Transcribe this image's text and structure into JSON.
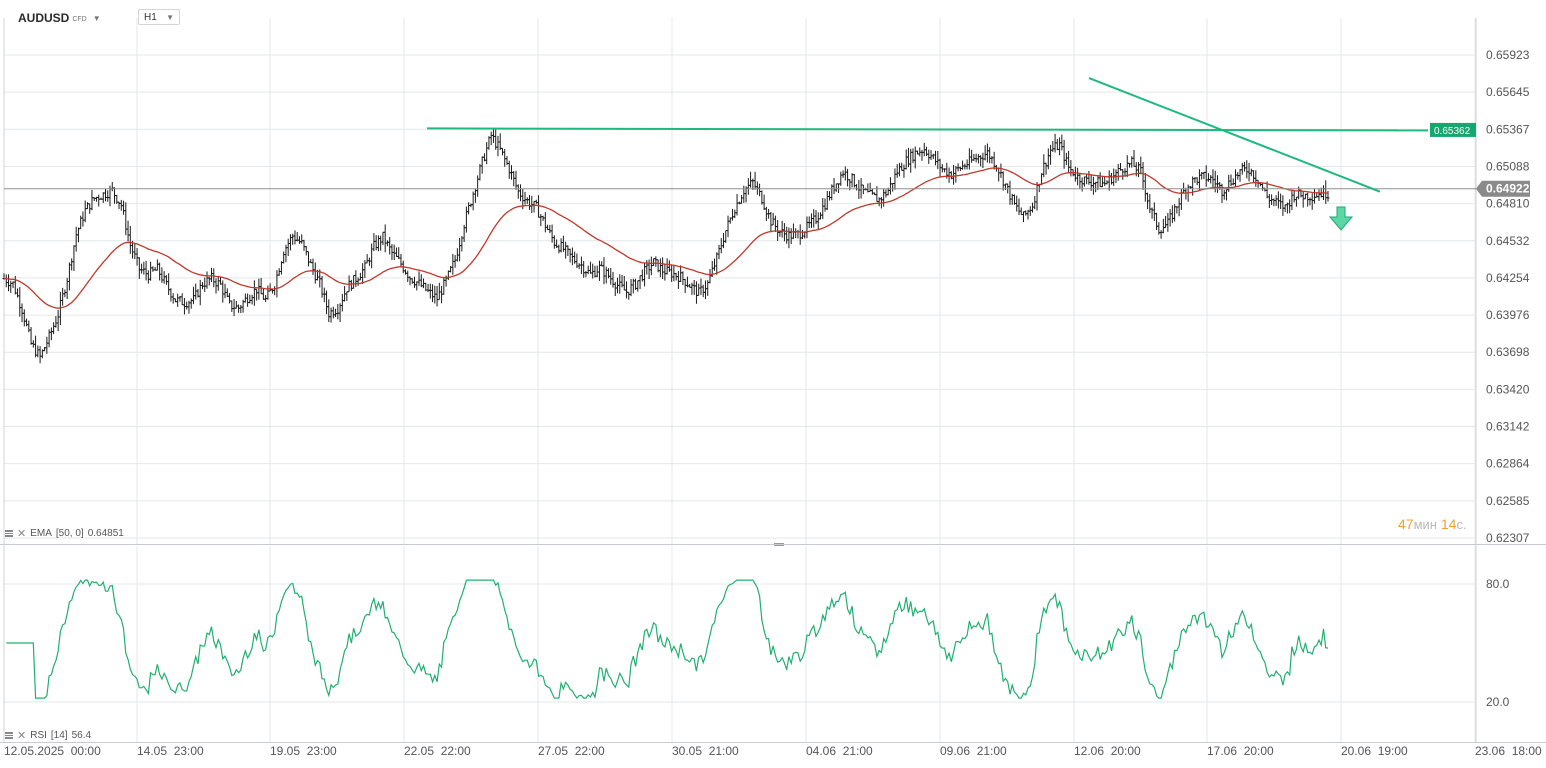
{
  "toolbar": {
    "symbol": "AUDUSD",
    "symbol_type": "CFD",
    "timeframe": "H1"
  },
  "indicators": {
    "ema": {
      "name": "EMA",
      "params": "[50, 0]",
      "value": "0.64851"
    },
    "rsi": {
      "name": "RSI",
      "params": "[14]",
      "value": "56.4"
    }
  },
  "timer": {
    "minutes": "47",
    "minutes_unit": "мин",
    "seconds": "14",
    "seconds_unit": "с."
  },
  "colors": {
    "candle": "#1a1a1a",
    "ema": "#c0392b",
    "trendline": "#1fb87e",
    "rsi": "#20b070",
    "grid": "#e4e7ea",
    "axis_text": "#555555",
    "accent_badge": "#14a870",
    "price_badge": "#8a8a8a"
  },
  "chart_data": [
    {
      "type": "candlestick",
      "title": "AUDUSD",
      "y_ticks": [
        "0.65923",
        "0.65645",
        "0.65367",
        "0.65088",
        "0.64810",
        "0.64532",
        "0.64254",
        "0.63976",
        "0.63698",
        "0.63420",
        "0.63142",
        "0.62864",
        "0.62585",
        "0.62307"
      ],
      "ylim": [
        0.62307,
        0.65923
      ],
      "x_ticks": [
        "12.05.2025  00:00",
        "14.05  23:00",
        "19.05  23:00",
        "22.05  22:00",
        "27.05  22:00",
        "30.05  21:00",
        "04.06  21:00",
        "09.06  21:00",
        "12.06  20:00",
        "17.06  20:00",
        "20.06  19:00",
        "23.06  18:00"
      ],
      "current_price": "0.64922",
      "level_label": "0.65362",
      "close_series": [
        0.6425,
        0.6421,
        0.6402,
        0.6376,
        0.6366,
        0.6381,
        0.6398,
        0.6425,
        0.6458,
        0.6476,
        0.6485,
        0.6488,
        0.6491,
        0.648,
        0.645,
        0.6432,
        0.6428,
        0.6432,
        0.642,
        0.6409,
        0.6407,
        0.6409,
        0.6421,
        0.6425,
        0.642,
        0.6405,
        0.6403,
        0.6411,
        0.6417,
        0.6409,
        0.6421,
        0.6446,
        0.6457,
        0.6451,
        0.6435,
        0.6421,
        0.6399,
        0.6403,
        0.6418,
        0.6425,
        0.6433,
        0.6449,
        0.6456,
        0.6444,
        0.6436,
        0.6426,
        0.6421,
        0.6415,
        0.641,
        0.6423,
        0.6439,
        0.6466,
        0.6489,
        0.6512,
        0.6532,
        0.6521,
        0.6507,
        0.649,
        0.6483,
        0.6478,
        0.6465,
        0.6452,
        0.6447,
        0.644,
        0.6435,
        0.6428,
        0.6433,
        0.6427,
        0.642,
        0.6415,
        0.6421,
        0.643,
        0.6437,
        0.6431,
        0.6429,
        0.6426,
        0.642,
        0.6414,
        0.6421,
        0.644,
        0.6461,
        0.6478,
        0.6491,
        0.6497,
        0.6485,
        0.6468,
        0.646,
        0.6457,
        0.6458,
        0.6463,
        0.647,
        0.6481,
        0.6494,
        0.6505,
        0.6499,
        0.6491,
        0.6487,
        0.6484,
        0.6491,
        0.6505,
        0.6513,
        0.6519,
        0.6522,
        0.6515,
        0.6507,
        0.6503,
        0.6508,
        0.6512,
        0.6516,
        0.6519,
        0.651,
        0.6495,
        0.648,
        0.6471,
        0.648,
        0.6505,
        0.6521,
        0.6525,
        0.6508,
        0.6501,
        0.6498,
        0.6497,
        0.6496,
        0.6502,
        0.6508,
        0.6511,
        0.6505,
        0.6478,
        0.6462,
        0.6466,
        0.648,
        0.6493,
        0.6499,
        0.6501,
        0.6499,
        0.6491,
        0.6498,
        0.6505,
        0.6507,
        0.6499,
        0.6486,
        0.6482,
        0.6478,
        0.6488,
        0.6487,
        0.6487,
        0.6489
      ]
    },
    {
      "type": "line",
      "title": "RSI",
      "y_ticks": [
        "80.0",
        "20.0"
      ],
      "ylim": [
        20,
        80
      ],
      "current_value": "56.4"
    }
  ]
}
